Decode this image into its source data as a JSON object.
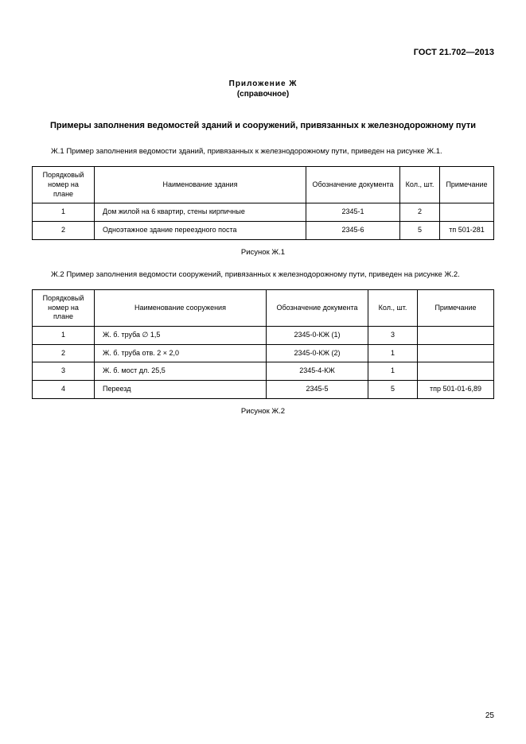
{
  "header": "ГОСТ 21.702—2013",
  "appendix_title": "Приложение Ж",
  "appendix_sub": "(справочное)",
  "main_title": "Примеры заполнения ведомостей зданий и сооружений, привязанных к железнодорожному пути",
  "para1": "Ж.1 Пример заполнения ведомости зданий, привязанных к железнодорожному пути, приведен на рисунке Ж.1.",
  "table1": {
    "headers": {
      "num": "Порядковый номер на плане",
      "name": "Наименование здания",
      "doc": "Обозначение документа",
      "qty": "Кол., шт.",
      "note": "Примечание"
    },
    "rows": [
      {
        "num": "1",
        "name": "Дом жилой на 6 квартир, стены кирпичные",
        "doc": "2345-1",
        "qty": "2",
        "note": ""
      },
      {
        "num": "2",
        "name": "Одноэтажное здание переездного поста",
        "doc": "2345-6",
        "qty": "5",
        "note": "тп 501-281"
      }
    ]
  },
  "fig1_caption": "Рисунок Ж.1",
  "para2": "Ж.2 Пример заполнения ведомости сооружений, привязанных к железнодорожному пути, приведен на рисунке Ж.2.",
  "table2": {
    "headers": {
      "num": "Порядковый номер на плане",
      "name": "Наименование сооружения",
      "doc": "Обозначение документа",
      "qty": "Кол., шт.",
      "note": "Примечание"
    },
    "rows": [
      {
        "num": "1",
        "name": "Ж. б. труба ∅ 1,5",
        "doc": "2345-0-КЖ (1)",
        "qty": "3",
        "note": ""
      },
      {
        "num": "2",
        "name": "Ж. б. труба отв. 2 × 2,0",
        "doc": "2345-0-КЖ (2)",
        "qty": "1",
        "note": ""
      },
      {
        "num": "3",
        "name": "Ж. б. мост дл. 25,5",
        "doc": "2345-4-КЖ",
        "qty": "1",
        "note": ""
      },
      {
        "num": "4",
        "name": "Переезд",
        "doc": "2345-5",
        "qty": "5",
        "note": "тпр 501-01-6,89"
      }
    ]
  },
  "fig2_caption": "Рисунок Ж.2",
  "page_number": "25"
}
